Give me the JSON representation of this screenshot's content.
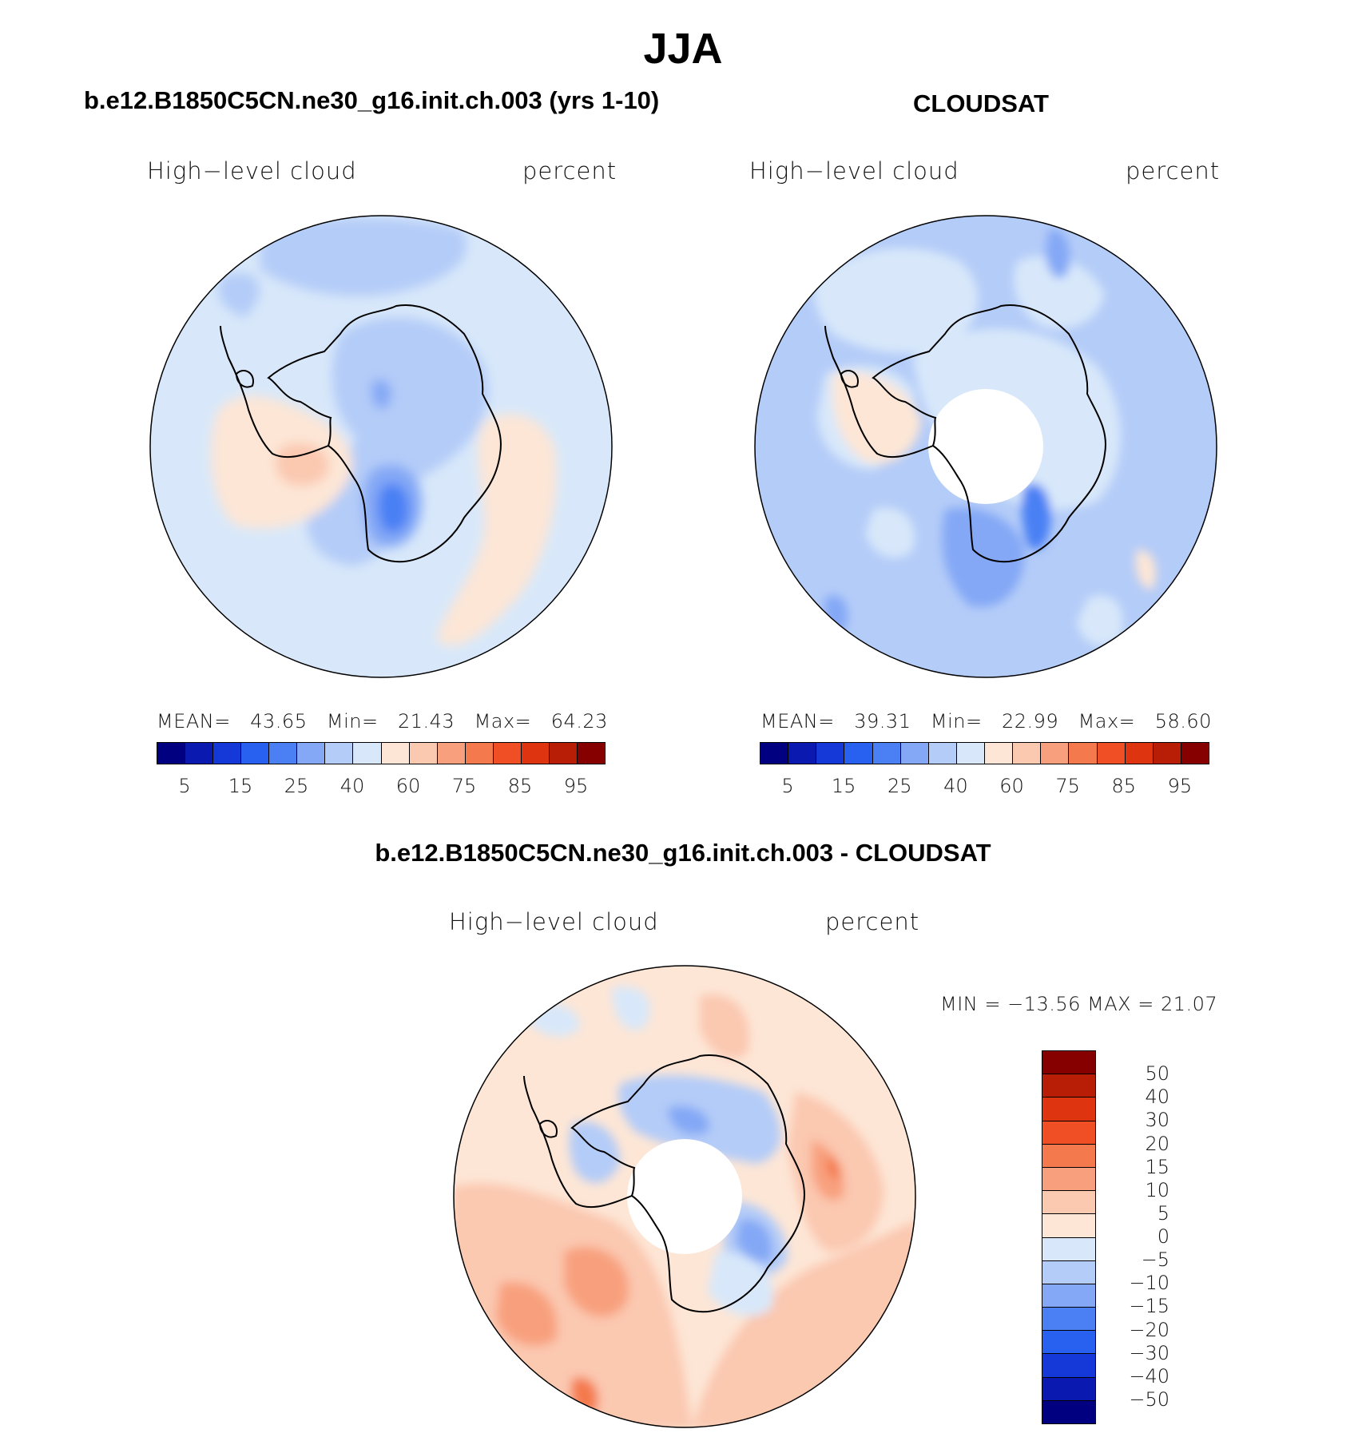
{
  "figure": {
    "title": "JJA"
  },
  "panels": [
    {
      "title": "b.e12.B1850C5CN.ne30_g16.init.ch.003 (yrs 1-10)",
      "variable": "High−level cloud",
      "units": "percent",
      "stats": {
        "mean_label": "MEAN=",
        "mean": "43.65",
        "min_label": "Min=",
        "min": "21.43",
        "max_label": "Max=",
        "max": "64.23"
      }
    },
    {
      "title": "CLOUDSAT",
      "variable": "High−level cloud",
      "units": "percent",
      "stats": {
        "mean_label": "MEAN=",
        "mean": "39.31",
        "min_label": "Min=",
        "min": "22.99",
        "max_label": "Max=",
        "max": "58.60"
      }
    },
    {
      "title": "b.e12.B1850C5CN.ne30_g16.init.ch.003 - CLOUDSAT",
      "variable": "High−level cloud",
      "units": "percent",
      "stats": {
        "text": "MIN = −13.56 MAX =   21.07"
      }
    }
  ],
  "colorbars": {
    "absolute": {
      "colors": [
        "#000080",
        "#0a1ab0",
        "#1538d8",
        "#2860f0",
        "#4a80f4",
        "#84a8f6",
        "#b4ccf8",
        "#d8e8fa",
        "#fde6d6",
        "#fbc8b0",
        "#f8a07e",
        "#f47a4e",
        "#f04e24",
        "#de3410",
        "#b81e06",
        "#860000"
      ],
      "tick_labels": [
        "5",
        "15",
        "25",
        "40",
        "60",
        "75",
        "85",
        "95"
      ]
    },
    "difference": {
      "colors": [
        "#860000",
        "#b81e06",
        "#de3410",
        "#f04e24",
        "#f47a4e",
        "#f8a07e",
        "#fbc8b0",
        "#fde6d6",
        "#d8e8fa",
        "#b4ccf8",
        "#84a8f6",
        "#4a80f4",
        "#2860f0",
        "#1538d8",
        "#0a1ab0",
        "#000080"
      ],
      "tick_labels": [
        "50",
        "40",
        "30",
        "20",
        "15",
        "10",
        "5",
        "0",
        "−5",
        "−10",
        "−15",
        "−20",
        "−30",
        "−40",
        "−50"
      ]
    }
  }
}
